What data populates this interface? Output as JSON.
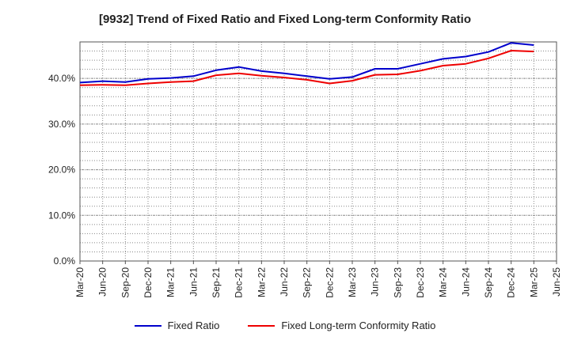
{
  "chart_data": {
    "type": "line",
    "title": "[9932]  Trend of Fixed Ratio and Fixed Long-term Conformity Ratio",
    "xlabel": "",
    "ylabel": "",
    "ylim": [
      0,
      48
    ],
    "yticks": [
      0,
      10,
      20,
      30,
      40
    ],
    "ytick_labels": [
      "0.0%",
      "10.0%",
      "20.0%",
      "30.0%",
      "40.0%"
    ],
    "grid": true,
    "legend_position": "bottom",
    "x_tick_labels": [
      "Mar-20",
      "Jun-20",
      "Sep-20",
      "Dec-20",
      "Mar-21",
      "Jun-21",
      "Sep-21",
      "Dec-21",
      "Mar-22",
      "Jun-22",
      "Sep-22",
      "Dec-22",
      "Mar-23",
      "Jun-23",
      "Sep-23",
      "Dec-23",
      "Mar-24",
      "Jun-24",
      "Sep-24",
      "Dec-24",
      "Mar-25",
      "Jun-25"
    ],
    "categories": [
      "Mar-20",
      "Jun-20",
      "Sep-20",
      "Dec-20",
      "Mar-21",
      "Jun-21",
      "Sep-21",
      "Dec-21",
      "Mar-22",
      "Jun-22",
      "Sep-22",
      "Dec-22",
      "Mar-23",
      "Jun-23",
      "Sep-23",
      "Dec-23",
      "Mar-24",
      "Jun-24",
      "Sep-24",
      "Dec-24",
      "Mar-25"
    ],
    "series": [
      {
        "name": "Fixed Ratio",
        "color": "#0000cc",
        "values": [
          39.1,
          39.4,
          39.2,
          39.9,
          40.1,
          40.5,
          41.8,
          42.5,
          41.6,
          41.1,
          40.5,
          39.9,
          40.3,
          42.1,
          42.1,
          43.2,
          44.3,
          44.8,
          45.8,
          47.8,
          47.3
        ]
      },
      {
        "name": "Fixed Long-term Conformity Ratio",
        "color": "#ee0000",
        "values": [
          38.5,
          38.6,
          38.5,
          38.9,
          39.2,
          39.4,
          40.7,
          41.1,
          40.6,
          40.2,
          39.7,
          38.9,
          39.5,
          40.8,
          40.9,
          41.7,
          42.8,
          43.2,
          44.4,
          46.1,
          45.9
        ]
      }
    ]
  }
}
